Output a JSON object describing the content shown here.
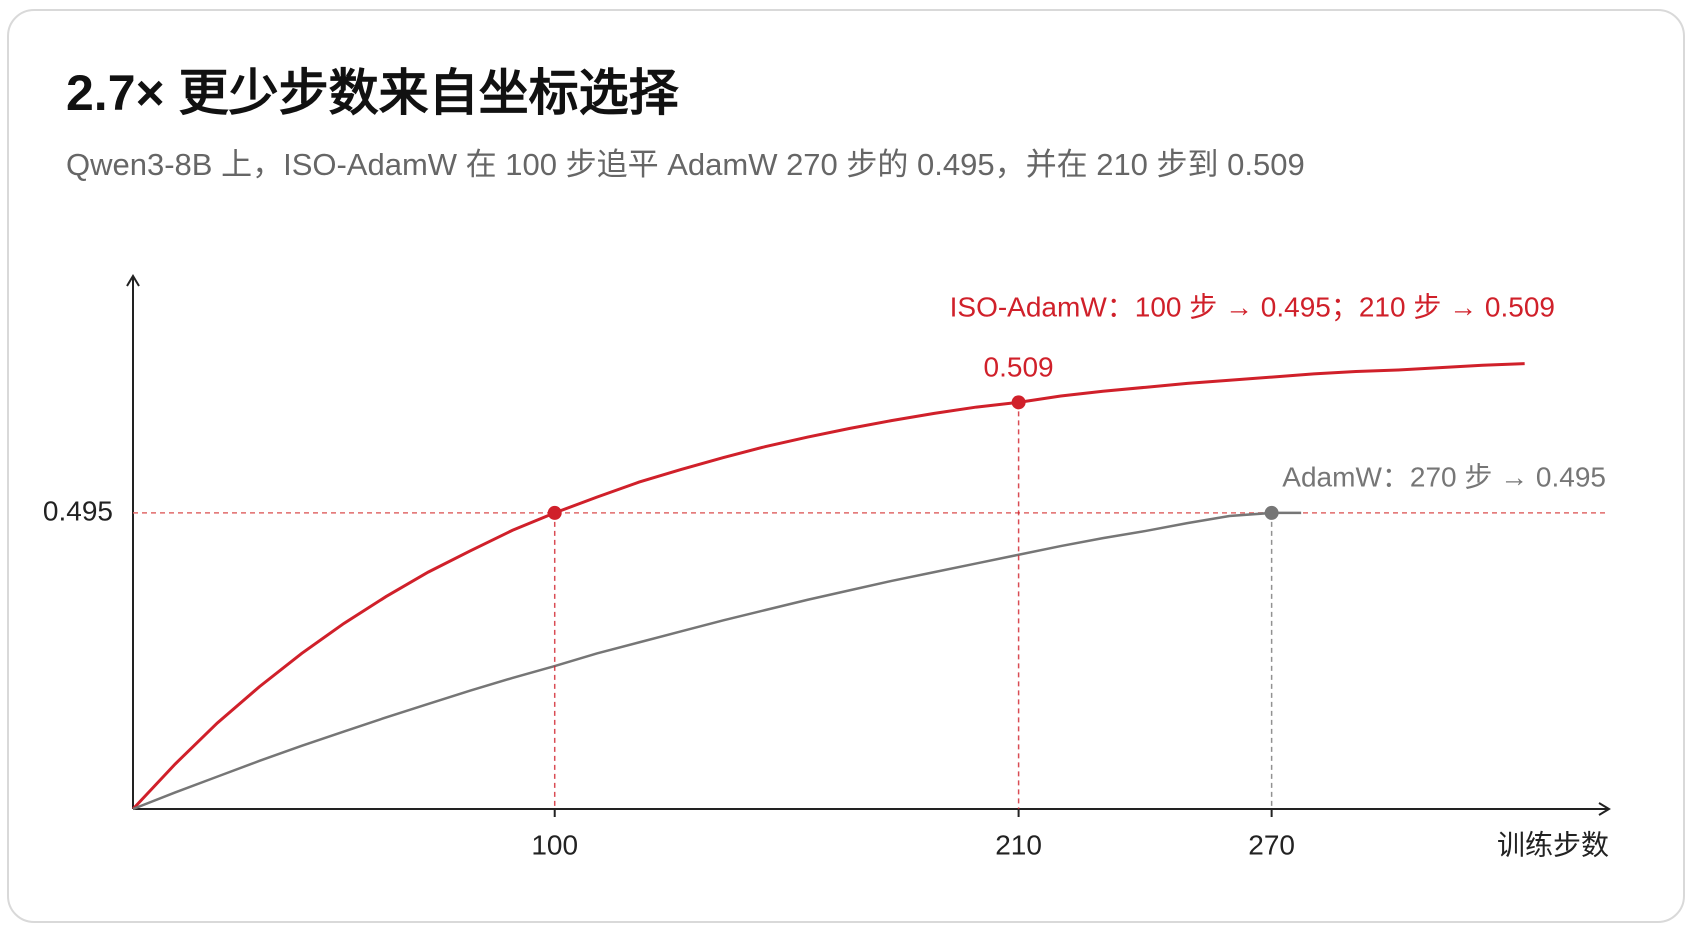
{
  "chart_data": {
    "type": "line",
    "title": "2.7× 更少步数来自坐标选择",
    "subtitle": "Qwen3-8B 上，ISO-AdamW 在 100 步追平 AdamW 270 步的 0.495，并在 210 步到 0.509",
    "x_label": "训练步数",
    "xlim": [
      0,
      350
    ],
    "ylim": [
      0.4575,
      0.525
    ],
    "xticks": [
      100,
      210,
      270
    ],
    "yticks": [
      0.495
    ],
    "series": [
      {
        "name": "ISO-AdamW：100 步 → 0.495；210 步 → 0.509",
        "color": "#d0202a",
        "x": [
          0,
          10,
          20,
          30,
          40,
          50,
          60,
          70,
          80,
          90,
          100,
          110,
          120,
          130,
          140,
          150,
          160,
          170,
          180,
          190,
          200,
          210,
          220,
          230,
          240,
          250,
          260,
          270,
          280,
          290,
          300,
          310,
          320,
          330
        ],
        "values": [
          0.4575,
          0.4632,
          0.4684,
          0.473,
          0.4772,
          0.481,
          0.4844,
          0.4875,
          0.4902,
          0.4928,
          0.495,
          0.497,
          0.4989,
          0.5005,
          0.502,
          0.5034,
          0.5046,
          0.5057,
          0.5067,
          0.5076,
          0.5084,
          0.509,
          0.5098,
          0.5104,
          0.5109,
          0.5114,
          0.5118,
          0.5122,
          0.5126,
          0.5129,
          0.5131,
          0.5134,
          0.5137,
          0.5139
        ]
      },
      {
        "name": "AdamW：270 步 → 0.495",
        "color": "#767676",
        "x": [
          0,
          10,
          20,
          30,
          40,
          50,
          60,
          70,
          80,
          90,
          100,
          110,
          120,
          130,
          140,
          150,
          160,
          170,
          180,
          190,
          200,
          210,
          220,
          230,
          240,
          250,
          260,
          270,
          277
        ],
        "values": [
          0.4575,
          0.4596,
          0.4616,
          0.4636,
          0.4655,
          0.4673,
          0.4691,
          0.4708,
          0.4725,
          0.4741,
          0.4756,
          0.4772,
          0.4786,
          0.48,
          0.4814,
          0.4827,
          0.484,
          0.4852,
          0.4864,
          0.4875,
          0.4886,
          0.4897,
          0.4908,
          0.4918,
          0.4927,
          0.4937,
          0.4946,
          0.495,
          0.495
        ]
      }
    ],
    "markers": [
      {
        "x": 100,
        "y": 0.495,
        "color": "#d0202a"
      },
      {
        "x": 210,
        "y": 0.509,
        "color": "#d0202a",
        "label": "0.509"
      },
      {
        "x": 270,
        "y": 0.495,
        "color": "#767676"
      }
    ]
  }
}
